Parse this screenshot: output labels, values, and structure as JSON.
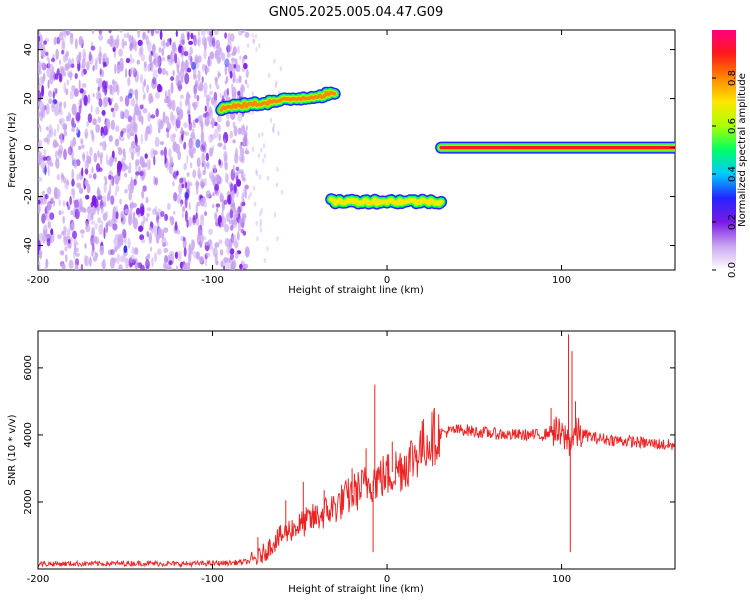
{
  "title": "GN05.2025.005.04.47.G09",
  "chart_data": [
    {
      "type": "heatmap",
      "xlabel": "Height of straight line (km)",
      "ylabel": "Frequency (Hz)",
      "xlim": [
        -200,
        165
      ],
      "ylim": [
        -50,
        48
      ],
      "x_ticks": [
        -200,
        -100,
        0,
        100
      ],
      "y_ticks": [
        -40,
        -20,
        0,
        20,
        40
      ],
      "x_tick_labels": [
        "-200",
        "-100",
        "0",
        "100"
      ],
      "y_tick_labels": [
        "-40",
        "-20",
        "0",
        "20",
        "40"
      ],
      "colorbar": {
        "label": "Normalized spectral amplitude",
        "range": [
          0,
          1
        ],
        "ticks": [
          0.0,
          0.2,
          0.4,
          0.6,
          0.8
        ],
        "tick_labels": [
          "0.0",
          "0.2",
          "0.4",
          "0.6",
          "0.8"
        ],
        "colors": [
          "#ffffff",
          "#c9a6f0",
          "#7a1ae6",
          "#2424ff",
          "#00c8ff",
          "#00ff66",
          "#aaff00",
          "#ffe600",
          "#ff8800",
          "#ff1a1a",
          "#ff0080"
        ]
      },
      "noise_region": {
        "x_range": [
          -200,
          -80
        ],
        "level": "low"
      },
      "tracks": [
        {
          "x_start": -95,
          "x_end": -30,
          "y_start": 16,
          "y_end": 22,
          "intensity": 0.9
        },
        {
          "x_start": -32,
          "x_end": 31,
          "y_start": -22,
          "y_end": -22,
          "intensity": 0.8
        },
        {
          "x_start": 31,
          "x_end": 165,
          "y_start": 0,
          "y_end": 0,
          "intensity": 1.0
        }
      ]
    },
    {
      "type": "line",
      "xlabel": "Height of straight line (km)",
      "ylabel": "SNR (10 * v/v)",
      "xlim": [
        -200,
        165
      ],
      "ylim": [
        0,
        7100
      ],
      "x_ticks": [
        -200,
        -100,
        0,
        100
      ],
      "y_ticks": [
        2000,
        4000,
        6000
      ],
      "x_tick_labels": [
        "-200",
        "-100",
        "0",
        "100"
      ],
      "y_tick_labels": [
        "2000",
        "4000",
        "6000"
      ],
      "color": "#ee2222",
      "series": [
        {
          "x": [
            -200,
            -180,
            -160,
            -140,
            -120,
            -100,
            -90,
            -80,
            -75,
            -70,
            -65,
            -60,
            -55,
            -50,
            -45,
            -40,
            -35,
            -30,
            -25,
            -20,
            -15,
            -10,
            -5,
            0,
            5,
            10,
            15,
            20,
            25,
            30,
            35,
            40,
            45,
            50,
            60,
            70,
            80,
            90,
            95,
            100,
            103,
            105,
            107,
            110,
            120,
            130,
            140,
            150,
            160,
            165
          ],
          "y": [
            150,
            160,
            160,
            170,
            150,
            170,
            180,
            220,
            300,
            500,
            800,
            1000,
            1200,
            1300,
            1450,
            1550,
            1700,
            1850,
            2050,
            2250,
            2400,
            2600,
            2700,
            2800,
            2950,
            3100,
            3350,
            3650,
            3900,
            4050,
            4100,
            4150,
            4150,
            4100,
            4050,
            4000,
            4000,
            4000,
            4150,
            3950,
            3900,
            3800,
            4000,
            4050,
            3900,
            3850,
            3800,
            3750,
            3700,
            3680
          ]
        }
      ],
      "spikes": [
        {
          "x": -74,
          "y": 950
        },
        {
          "x": -58,
          "y": 2050
        },
        {
          "x": -48,
          "y": 2600
        },
        {
          "x": -36,
          "y": 2350
        },
        {
          "x": -20,
          "y": 3000
        },
        {
          "x": -12,
          "y": 3600
        },
        {
          "x": -7,
          "y": 5500
        },
        {
          "x": -8,
          "y": 500
        },
        {
          "x": 3,
          "y": 3800
        },
        {
          "x": 94,
          "y": 4800
        },
        {
          "x": 104,
          "y": 7000
        },
        {
          "x": 105,
          "y": 500
        },
        {
          "x": 106,
          "y": 6500
        },
        {
          "x": 108,
          "y": 5000
        }
      ]
    }
  ]
}
